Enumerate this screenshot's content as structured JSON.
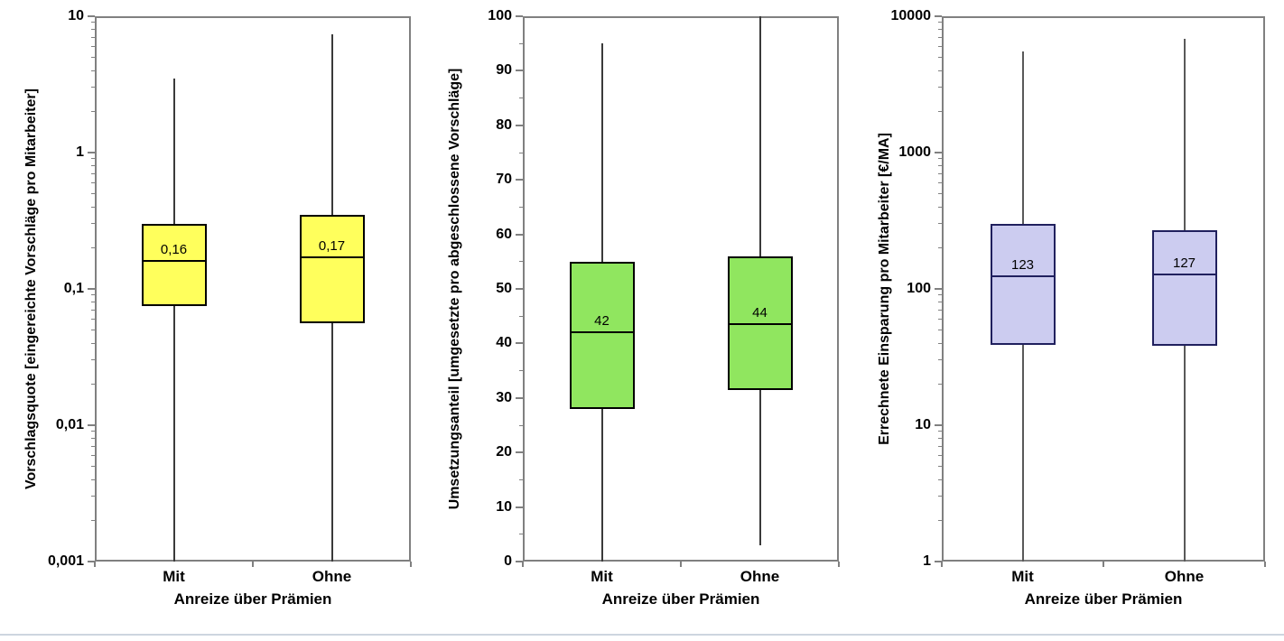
{
  "page": {
    "background": "#FFFFFF",
    "bottom_divider_color": "#CDD5DF"
  },
  "chart_data": [
    {
      "type": "boxplot",
      "ylabel": "Vorschlagsquote [eingereichte Vorschläge pro Mitarbeiter]",
      "xlabel": "Anreize über Prämien",
      "categories": [
        "Mit",
        "Ohne"
      ],
      "y_axis": {
        "scale": "log",
        "min": 0.001,
        "max": 10,
        "tick_values": [
          10,
          1,
          0.1,
          0.01,
          0.001
        ],
        "tick_labels": [
          "10",
          "1",
          "0,1",
          "0,01",
          "0,001"
        ],
        "minor_ticks": "log-2-9"
      },
      "legend": "none",
      "grid": false,
      "series": [
        {
          "category": "Mit",
          "whisker_low": 0.001,
          "q1": 0.075,
          "median": 0.16,
          "q3": 0.3,
          "whisker_high": 3.5,
          "median_label": "0,16"
        },
        {
          "category": "Ohne",
          "whisker_low": 0.001,
          "q1": 0.056,
          "median": 0.17,
          "q3": 0.35,
          "whisker_high": 7.4,
          "median_label": "0,17"
        }
      ],
      "colors": {
        "box_fill": "#FFFF5C",
        "box_stroke": "#000000",
        "whisker": "#3A3A3A",
        "axis": "#808080"
      }
    },
    {
      "type": "boxplot",
      "ylabel": "Umsetzungsanteil [umgesetzte pro abgeschlossene Vorschläge]",
      "xlabel": "Anreize über Prämien",
      "categories": [
        "Mit",
        "Ohne"
      ],
      "y_axis": {
        "scale": "linear",
        "min": 0,
        "max": 100,
        "tick_values": [
          100,
          90,
          80,
          70,
          60,
          50,
          40,
          30,
          20,
          10,
          0
        ],
        "tick_labels": [
          "100",
          "90",
          "80",
          "70",
          "60",
          "50",
          "40",
          "30",
          "20",
          "10",
          "0"
        ],
        "minor_step": 5
      },
      "legend": "none",
      "grid": false,
      "series": [
        {
          "category": "Mit",
          "whisker_low": 0,
          "q1": 28,
          "median": 42,
          "q3": 55,
          "whisker_high": 95,
          "median_label": "42"
        },
        {
          "category": "Ohne",
          "whisker_low": 3,
          "q1": 31.5,
          "median": 43.5,
          "q3": 56,
          "whisker_high": 100,
          "median_label": "44"
        }
      ],
      "colors": {
        "box_fill": "#90E65F",
        "box_stroke": "#000000",
        "whisker": "#3A3A3A",
        "axis": "#808080"
      }
    },
    {
      "type": "boxplot",
      "ylabel": "Errechnete Einsparung pro Mitarbeiter [€/MA]",
      "xlabel": "Anreize über Prämien",
      "categories": [
        "Mit",
        "Ohne"
      ],
      "y_axis": {
        "scale": "log",
        "min": 1,
        "max": 10000,
        "tick_values": [
          10000,
          1000,
          100,
          10,
          1
        ],
        "tick_labels": [
          "10000",
          "1000",
          "100",
          "10",
          "1"
        ],
        "minor_ticks": "log-2-9"
      },
      "legend": "none",
      "grid": false,
      "series": [
        {
          "category": "Mit",
          "whisker_low": 1,
          "q1": 39,
          "median": 123,
          "q3": 300,
          "whisker_high": 5500,
          "median_label": "123"
        },
        {
          "category": "Ohne",
          "whisker_low": 1,
          "q1": 38,
          "median": 127,
          "q3": 270,
          "whisker_high": 6800,
          "median_label": "127"
        }
      ],
      "colors": {
        "box_fill": "#CCCCF0",
        "box_stroke": "#20205E",
        "whisker": "#595959",
        "axis": "#808080"
      }
    }
  ]
}
